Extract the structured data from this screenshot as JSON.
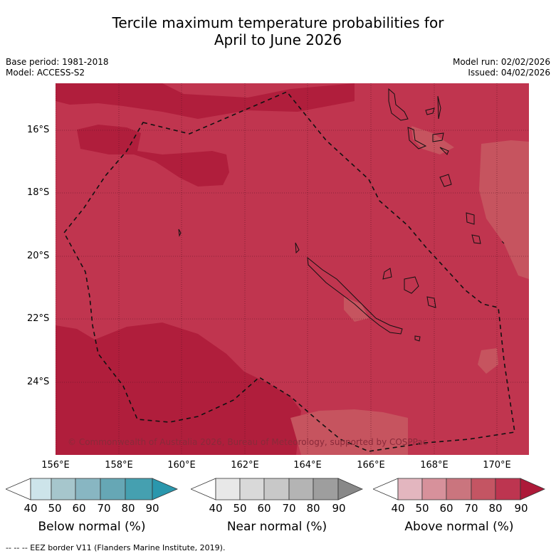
{
  "title_line1": "Tercile maximum temperature probabilities for",
  "title_line2": "April to June 2026",
  "base_period": "Base period: 1981-2018",
  "model": "Model: ACCESS-S2",
  "model_run": "Model run: 02/02/2026",
  "issued": "Issued: 04/02/2026",
  "latitudes": [
    "16°S",
    "18°S",
    "20°S",
    "22°S",
    "24°S"
  ],
  "longitudes": [
    "156°E",
    "158°E",
    "160°E",
    "162°E",
    "164°E",
    "166°E",
    "168°E",
    "170°E"
  ],
  "copyright": "© Commonwealth of Australia 2026, Bureau of Meteorology, supported by COSPPac",
  "legends": [
    {
      "label": "Below normal (%)",
      "ticks": [
        "40",
        "50",
        "60",
        "70",
        "80",
        "90"
      ],
      "colors": [
        "#cde4ea",
        "#a6c6cc",
        "#88b6c2",
        "#66a7b5",
        "#45a0b0",
        "#2a97ad"
      ]
    },
    {
      "label": "Near normal (%)",
      "ticks": [
        "40",
        "50",
        "60",
        "70",
        "80",
        "90"
      ],
      "colors": [
        "#e8e8e8",
        "#d9d9d9",
        "#c8c8c8",
        "#b4b4b4",
        "#9e9e9e",
        "#888888"
      ]
    },
    {
      "label": "Above normal (%)",
      "ticks": [
        "40",
        "50",
        "60",
        "70",
        "80",
        "90"
      ],
      "colors": [
        "#e3b6bf",
        "#d7919b",
        "#ca757e",
        "#c45563",
        "#bd3550",
        "#ad1a39"
      ]
    }
  ],
  "footnote": "-- -- -- EEZ border V11 (Flanders Marine Institute, 2019)."
}
